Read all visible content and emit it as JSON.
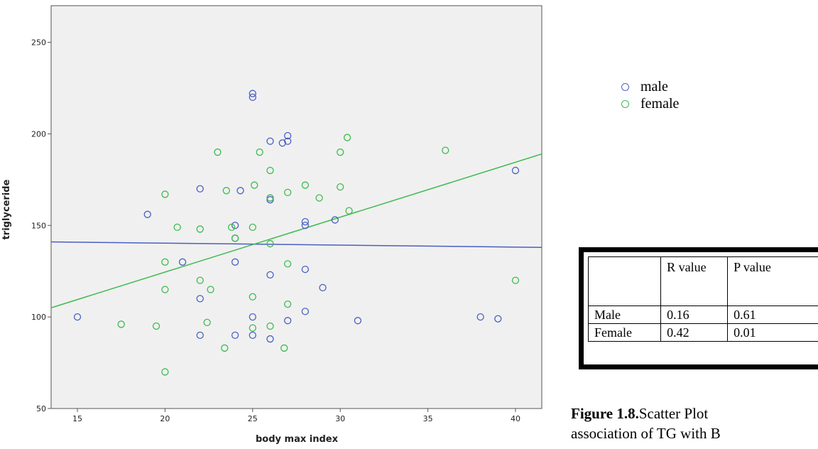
{
  "chart_data": {
    "type": "scatter",
    "xlabel": "body max index",
    "ylabel": "triglyceride",
    "xlim": [
      13.5,
      41.5
    ],
    "ylim": [
      50,
      270
    ],
    "xticks": [
      15,
      20,
      25,
      30,
      35,
      40
    ],
    "yticks": [
      50,
      100,
      150,
      200,
      250
    ],
    "grid": false,
    "legend_placement": "right",
    "series": [
      {
        "name": "male",
        "color": "#4a5fc1",
        "points": [
          [
            15,
            100
          ],
          [
            19,
            156
          ],
          [
            21,
            130
          ],
          [
            22,
            170
          ],
          [
            22,
            110
          ],
          [
            22,
            90
          ],
          [
            24,
            150
          ],
          [
            24,
            143
          ],
          [
            24,
            130
          ],
          [
            24,
            90
          ],
          [
            24.3,
            169
          ],
          [
            25,
            222
          ],
          [
            25,
            220
          ],
          [
            25,
            100
          ],
          [
            25,
            90
          ],
          [
            26,
            196
          ],
          [
            26,
            165
          ],
          [
            26,
            164
          ],
          [
            26,
            123
          ],
          [
            26,
            88
          ],
          [
            26.7,
            195
          ],
          [
            27,
            199
          ],
          [
            27,
            196
          ],
          [
            27,
            98
          ],
          [
            28,
            152
          ],
          [
            28,
            150
          ],
          [
            28,
            126
          ],
          [
            28,
            103
          ],
          [
            29,
            116
          ],
          [
            29.7,
            153
          ],
          [
            31,
            98
          ],
          [
            38,
            100
          ],
          [
            39,
            99
          ],
          [
            40,
            180
          ]
        ],
        "fit_line": [
          [
            13.5,
            141
          ],
          [
            41.5,
            138
          ]
        ]
      },
      {
        "name": "female",
        "color": "#3dbb4e",
        "points": [
          [
            17.5,
            96
          ],
          [
            19.5,
            95
          ],
          [
            20,
            167
          ],
          [
            20,
            130
          ],
          [
            20,
            115
          ],
          [
            20,
            70
          ],
          [
            20.7,
            149
          ],
          [
            22,
            148
          ],
          [
            22,
            120
          ],
          [
            22.4,
            97
          ],
          [
            22.6,
            115
          ],
          [
            23,
            190
          ],
          [
            23.4,
            83
          ],
          [
            23.5,
            169
          ],
          [
            23.8,
            149
          ],
          [
            24,
            143
          ],
          [
            25,
            149
          ],
          [
            25,
            111
          ],
          [
            25,
            94
          ],
          [
            25.1,
            172
          ],
          [
            25.4,
            190
          ],
          [
            26,
            180
          ],
          [
            26,
            165
          ],
          [
            26,
            140
          ],
          [
            26,
            95
          ],
          [
            26.8,
            83
          ],
          [
            27,
            168
          ],
          [
            27,
            129
          ],
          [
            27,
            107
          ],
          [
            28,
            172
          ],
          [
            28.8,
            165
          ],
          [
            30,
            190
          ],
          [
            30,
            171
          ],
          [
            30.4,
            198
          ],
          [
            30.5,
            158
          ],
          [
            36,
            191
          ],
          [
            40,
            120
          ]
        ],
        "fit_line": [
          [
            13.5,
            105
          ],
          [
            41.5,
            189
          ]
        ]
      }
    ]
  },
  "legend": {
    "items": [
      {
        "label": "male",
        "color": "#4a5fc1"
      },
      {
        "label": "female",
        "color": "#3dbb4e"
      }
    ]
  },
  "stats_table": {
    "header": [
      "",
      "R value",
      "P value"
    ],
    "rows": [
      [
        "Male",
        "0.16",
        "0.61"
      ],
      [
        "Female",
        "0.42",
        "0.01"
      ]
    ]
  },
  "caption": {
    "prefix": "Figure 1.8.",
    "text_line1": "Scatter Plot",
    "text_line2": "association of TG with B"
  }
}
